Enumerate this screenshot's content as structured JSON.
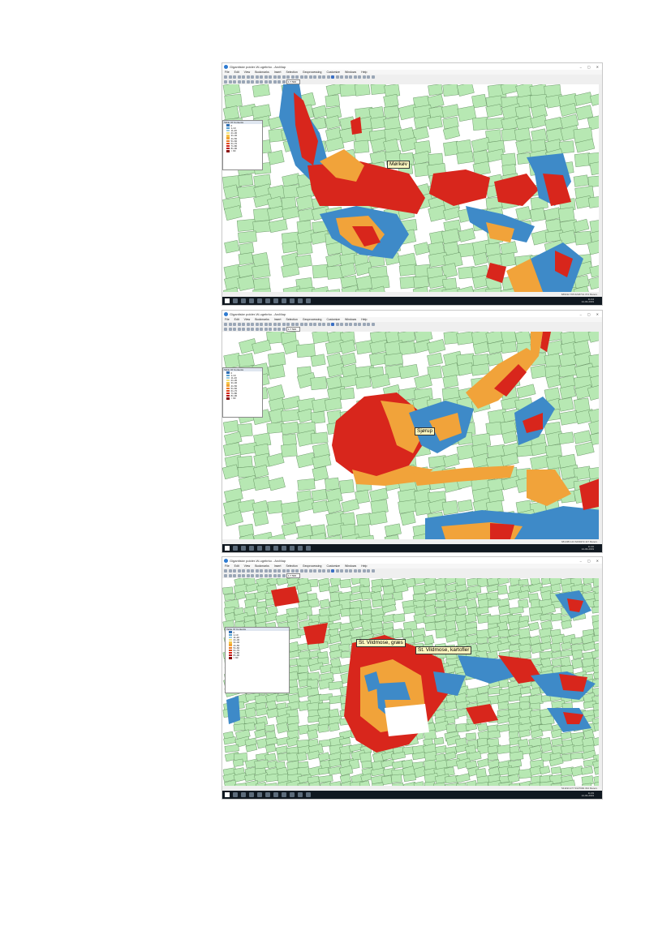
{
  "window": {
    "title": "Gigantiske polder-W-ugebrko - ArcMap",
    "controls": [
      "–",
      "▢",
      "✕"
    ]
  },
  "menu": [
    "File",
    "Edit",
    "View",
    "Bookmarks",
    "Insert",
    "Selection",
    "Geoprocessing",
    "Customize",
    "Windows",
    "Help"
  ],
  "toolbar": {
    "scale": "1:7 500"
  },
  "toc": {
    "title": "Table Of Contents",
    "legend_colors": [
      "#2f6fb5",
      "#58a0d0",
      "#9ccbe0",
      "#f3e27a",
      "#f5c54a",
      "#f2a233",
      "#ea7a28",
      "#e04a1f",
      "#d4241a",
      "#b81414",
      "#8b0f0f"
    ],
    "legend_labels": [
      "0",
      "1-10",
      "11-20",
      "21-30",
      "31-40",
      "41-50",
      "51-60",
      "61-70",
      "71-80",
      "81-90",
      "> 90"
    ]
  },
  "panels": [
    {
      "label": "Mørkøv",
      "status": "686432.765 6218741.374 Meters",
      "clock_time": "11:44",
      "clock_date": "14-03-2019"
    },
    {
      "label": "Sjørup",
      "status": "681495.143 6209472.117 Meters",
      "clock_time": "11:46",
      "clock_date": "14-03-2019"
    },
    {
      "labels": [
        "St. Vildmose, græs",
        "St. Vildmose, kartofler"
      ],
      "status": "541193.277 6327966.334 Meters",
      "clock_time": "11:49",
      "clock_date": "14-03-2019"
    }
  ],
  "colors": {
    "field_green": "#b7e8b3",
    "field_outline": "#5d8a5a",
    "high": "#d8261c",
    "mid": "#f1a33a",
    "low": "#3e8ac8",
    "map_bg": "#ffffff"
  }
}
